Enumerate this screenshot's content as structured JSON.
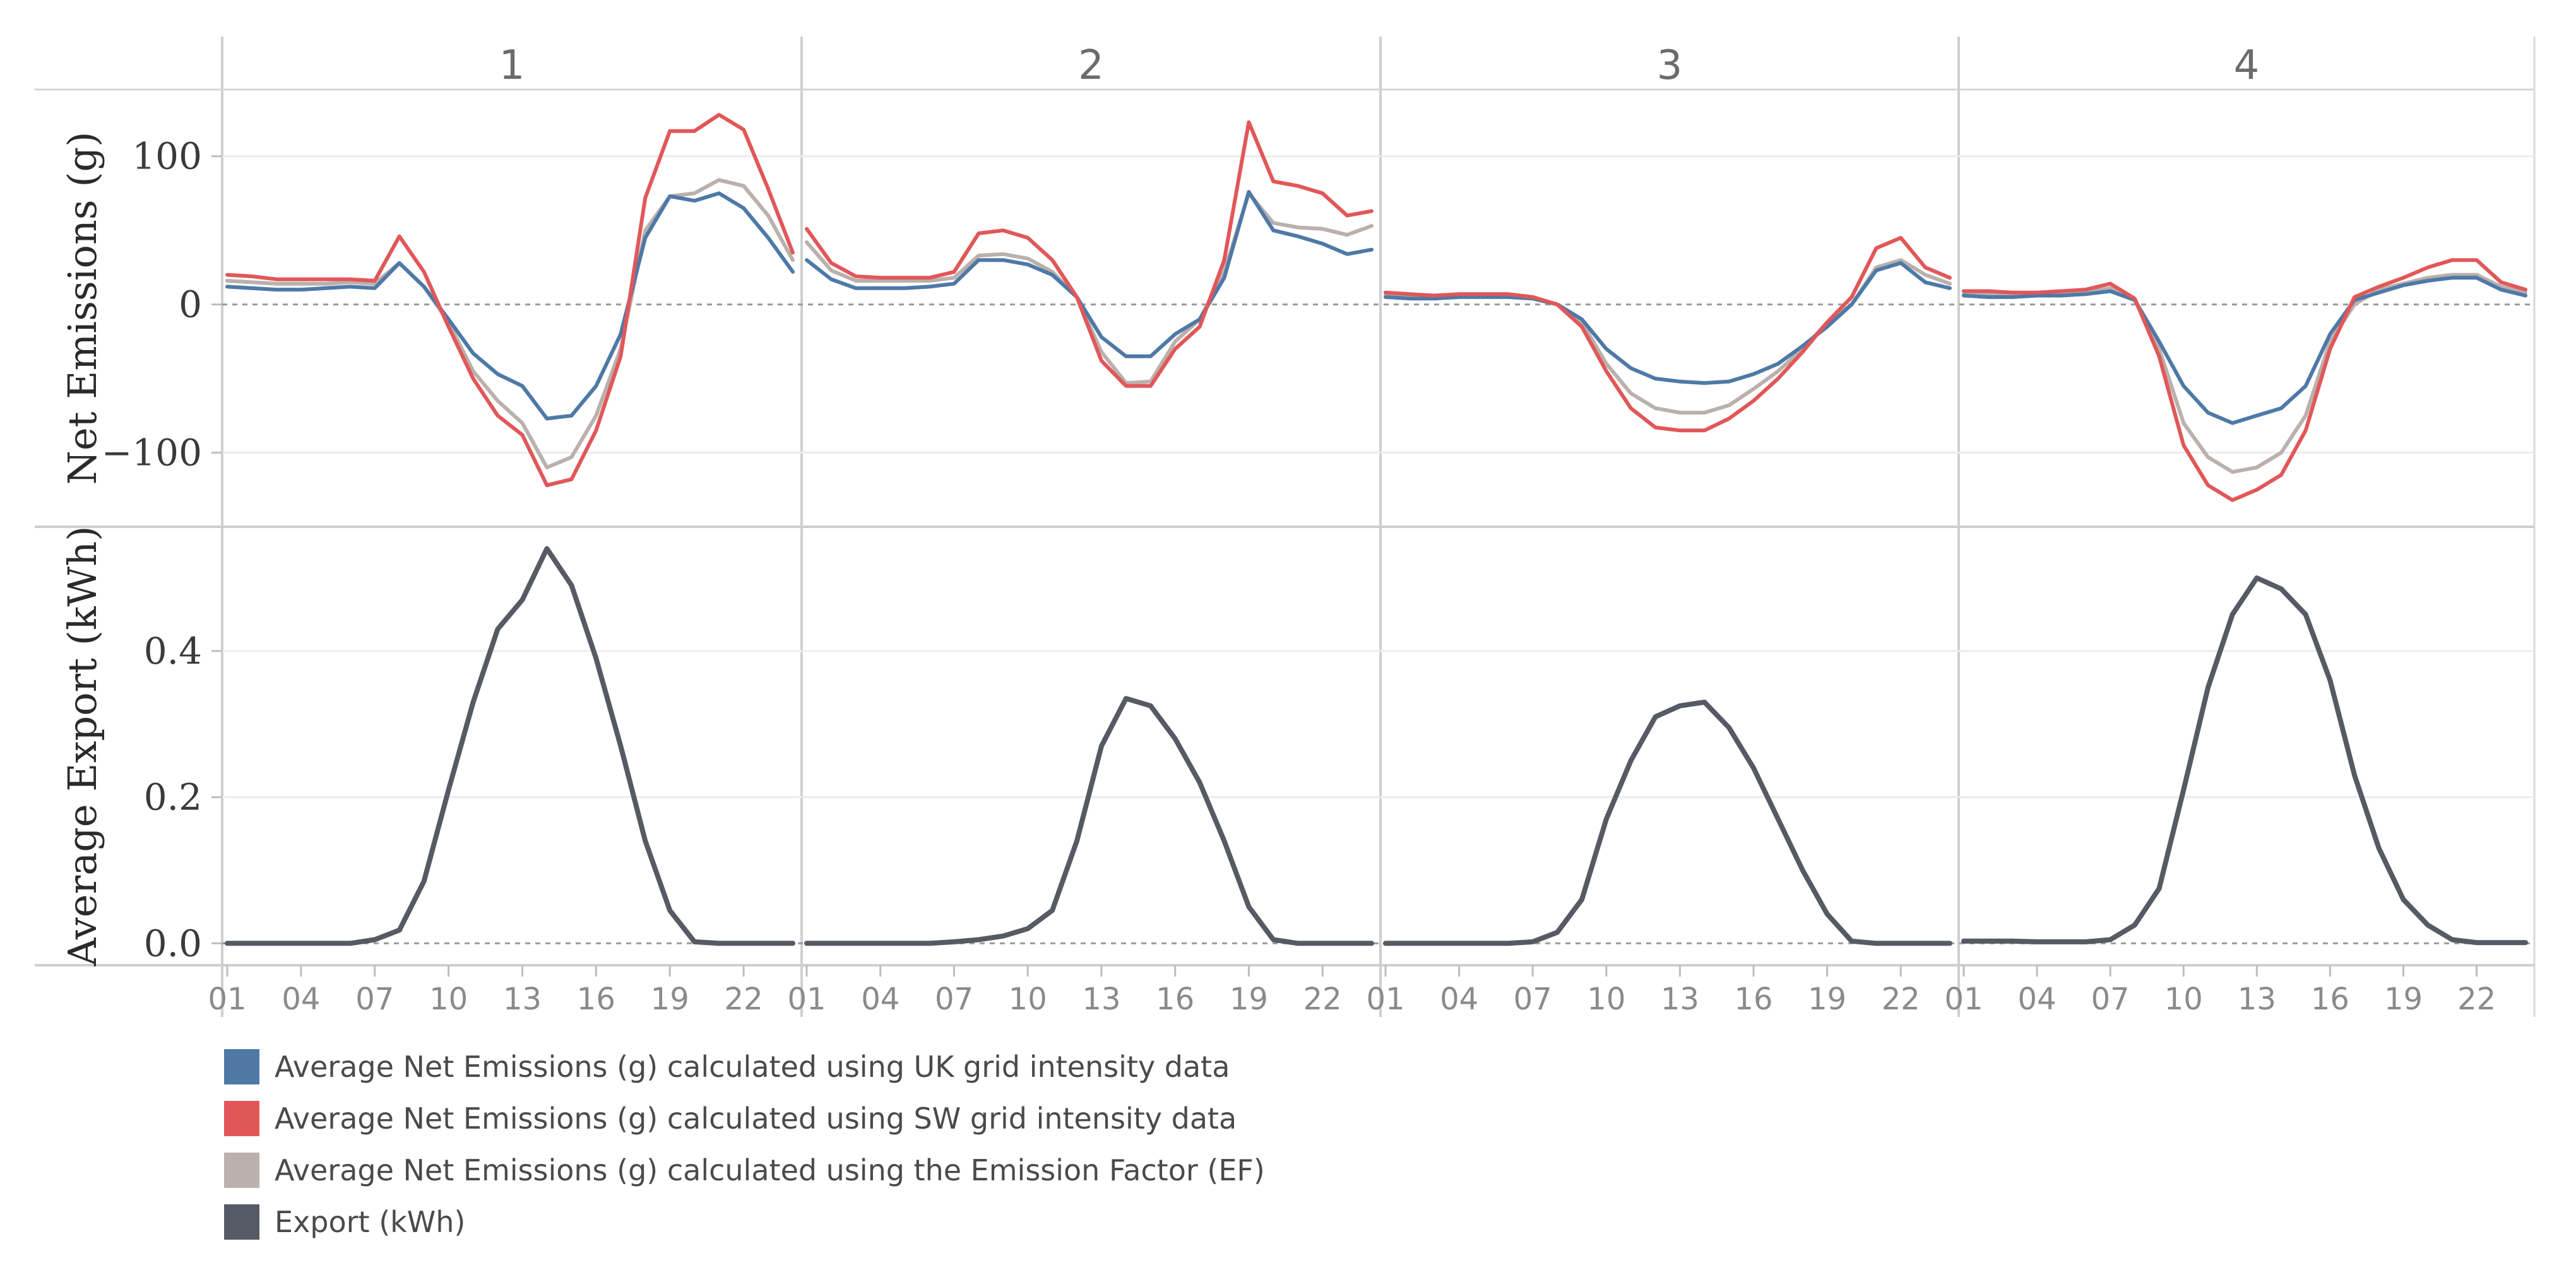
{
  "chart_data": {
    "type": "line",
    "panels": [
      "1",
      "2",
      "3",
      "4"
    ],
    "x": [
      1,
      2,
      3,
      4,
      5,
      6,
      7,
      8,
      9,
      10,
      11,
      12,
      13,
      14,
      15,
      16,
      17,
      18,
      19,
      20,
      21,
      22,
      23,
      24
    ],
    "x_tick_labels": [
      "01",
      "04",
      "07",
      "10",
      "13",
      "16",
      "19",
      "22"
    ],
    "x_tick_values": [
      1,
      4,
      7,
      10,
      13,
      16,
      19,
      22
    ],
    "top": {
      "ylabel": "Net Emissions (g)",
      "ylim": [
        -150,
        145
      ],
      "yticks": [
        100,
        0,
        -100
      ],
      "ytick_labels": [
        "100",
        "0",
        "−100"
      ],
      "series": [
        {
          "name": "Average Net Emissions (g) calculated using UK grid intensity data",
          "color": "#4e79a7",
          "panels": [
            [
              12,
              11,
              10,
              10,
              11,
              12,
              11,
              28,
              12,
              -10,
              -33,
              -47,
              -55,
              -77,
              -75,
              -55,
              -20,
              45,
              73,
              70,
              75,
              65,
              45,
              22
            ],
            [
              30,
              17,
              11,
              11,
              11,
              12,
              14,
              30,
              30,
              27,
              20,
              5,
              -22,
              -35,
              -35,
              -20,
              -10,
              18,
              76,
              50,
              46,
              41,
              34,
              37
            ],
            [
              5,
              4,
              4,
              5,
              5,
              5,
              4,
              0,
              -10,
              -30,
              -43,
              -50,
              -52,
              -53,
              -52,
              -47,
              -40,
              -28,
              -15,
              0,
              23,
              28,
              15,
              11
            ],
            [
              6,
              5,
              5,
              6,
              6,
              7,
              9,
              3,
              -25,
              -55,
              -73,
              -80,
              -75,
              -70,
              -55,
              -20,
              3,
              8,
              13,
              16,
              18,
              18,
              10,
              6
            ]
          ]
        },
        {
          "name": "Average Net Emissions (g) calculated using SW grid intensity data",
          "color": "#e15759",
          "panels": [
            [
              20,
              19,
              17,
              17,
              17,
              17,
              16,
              46,
              22,
              -15,
              -50,
              -75,
              -88,
              -122,
              -118,
              -85,
              -35,
              72,
              117,
              117,
              128,
              118,
              78,
              35
            ],
            [
              51,
              28,
              19,
              18,
              18,
              18,
              22,
              48,
              50,
              45,
              30,
              5,
              -38,
              -55,
              -55,
              -30,
              -15,
              30,
              123,
              83,
              80,
              75,
              60,
              63
            ],
            [
              8,
              7,
              6,
              7,
              7,
              7,
              5,
              0,
              -15,
              -45,
              -70,
              -83,
              -85,
              -85,
              -77,
              -65,
              -50,
              -32,
              -12,
              5,
              38,
              45,
              25,
              18
            ],
            [
              9,
              9,
              8,
              8,
              9,
              10,
              14,
              4,
              -35,
              -95,
              -122,
              -132,
              -125,
              -115,
              -85,
              -30,
              5,
              12,
              18,
              25,
              30,
              30,
              15,
              10
            ]
          ]
        },
        {
          "name": "Average Net Emissions (g) calculated using the Emission Factor (EF)",
          "color": "#bab0ac",
          "panels": [
            [
              16,
              15,
              14,
              14,
              14,
              15,
              14,
              28,
              12,
              -12,
              -45,
              -65,
              -80,
              -110,
              -103,
              -75,
              -30,
              50,
              73,
              75,
              84,
              80,
              60,
              30
            ],
            [
              42,
              23,
              16,
              16,
              16,
              16,
              18,
              33,
              34,
              31,
              22,
              5,
              -32,
              -53,
              -52,
              -25,
              -10,
              22,
              75,
              55,
              52,
              51,
              47,
              53
            ],
            [
              6,
              6,
              5,
              6,
              6,
              6,
              5,
              0,
              -12,
              -40,
              -60,
              -70,
              -73,
              -73,
              -68,
              -57,
              -45,
              -30,
              -12,
              0,
              25,
              30,
              20,
              14
            ],
            [
              7,
              7,
              6,
              7,
              7,
              8,
              11,
              3,
              -30,
              -80,
              -103,
              -113,
              -110,
              -100,
              -75,
              -25,
              0,
              10,
              14,
              18,
              20,
              20,
              12,
              8
            ]
          ]
        }
      ]
    },
    "bottom": {
      "ylabel": "Average Export (kWh)",
      "ylim": [
        -0.03,
        0.57
      ],
      "yticks": [
        0.4,
        0.2,
        0.0
      ],
      "ytick_labels": [
        "0.4",
        "0.2",
        "0.0"
      ],
      "series": [
        {
          "name": "Export (kWh)",
          "color": "#555a64",
          "panels": [
            [
              0,
              0,
              0,
              0,
              0,
              0,
              0.005,
              0.018,
              0.085,
              0.21,
              0.33,
              0.43,
              0.47,
              0.54,
              0.49,
              0.39,
              0.27,
              0.14,
              0.045,
              0.002,
              0,
              0,
              0,
              0
            ],
            [
              0,
              0,
              0,
              0,
              0,
              0,
              0.002,
              0.005,
              0.01,
              0.02,
              0.045,
              0.14,
              0.27,
              0.335,
              0.325,
              0.28,
              0.22,
              0.14,
              0.05,
              0.005,
              0,
              0,
              0,
              0
            ],
            [
              0,
              0,
              0,
              0,
              0,
              0,
              0.002,
              0.015,
              0.06,
              0.17,
              0.25,
              0.31,
              0.325,
              0.33,
              0.295,
              0.24,
              0.17,
              0.1,
              0.04,
              0.003,
              0,
              0,
              0,
              0
            ],
            [
              0.003,
              0.003,
              0.003,
              0.002,
              0.002,
              0.002,
              0.005,
              0.025,
              0.075,
              0.21,
              0.35,
              0.45,
              0.5,
              0.485,
              0.45,
              0.36,
              0.23,
              0.13,
              0.06,
              0.025,
              0.005,
              0.001,
              0.001,
              0.001
            ]
          ]
        }
      ]
    }
  },
  "legend": [
    {
      "label": "Average Net Emissions (g) calculated using UK grid intensity data",
      "color": "#4e79a7"
    },
    {
      "label": "Average Net Emissions (g) calculated using SW grid intensity data",
      "color": "#e15759"
    },
    {
      "label": "Average Net Emissions (g) calculated using the Emission Factor (EF)",
      "color": "#bab0ac"
    },
    {
      "label": "Export (kWh)",
      "color": "#555a64"
    }
  ]
}
